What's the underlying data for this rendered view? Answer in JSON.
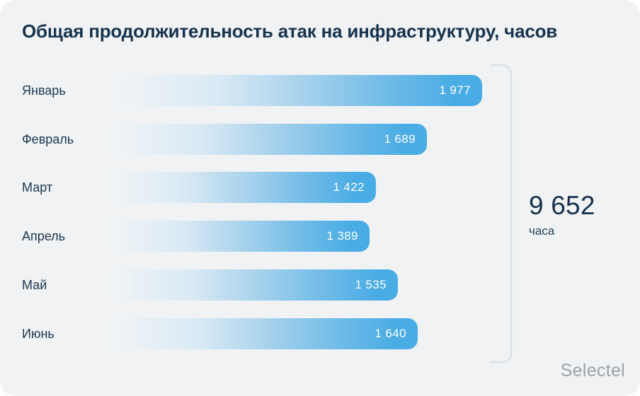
{
  "card": {
    "title": "Общая продолжительность атак на инфраструктуру, часов",
    "brand": "Selectel"
  },
  "chart_data": {
    "type": "bar",
    "orientation": "horizontal",
    "title": "Общая продолжительность атак на инфраструктуру, часов",
    "categories": [
      "Январь",
      "Февраль",
      "Март",
      "Апрель",
      "Май",
      "Июнь"
    ],
    "values": [
      1977,
      1689,
      1422,
      1389,
      1535,
      1640
    ],
    "value_labels": [
      "1 977",
      "1 689",
      "1 422",
      "1 389",
      "1 535",
      "1 640"
    ],
    "xlim": [
      0,
      1977
    ],
    "grid": false,
    "legend": false,
    "bar_gradient": [
      "#ffffff",
      "#49ace4"
    ],
    "total": {
      "value": 9652,
      "label": "9 652",
      "unit": "часа"
    }
  },
  "colors": {
    "card_bg": "#f0f2f3",
    "title_text": "#17334d",
    "label_text": "#1d3852",
    "bar_blue": "#49ace4",
    "bar_value_text": "#ffffff",
    "bracket": "#dce1e5",
    "total_text": "#16304a",
    "brand_gray": "#99a3ab"
  }
}
